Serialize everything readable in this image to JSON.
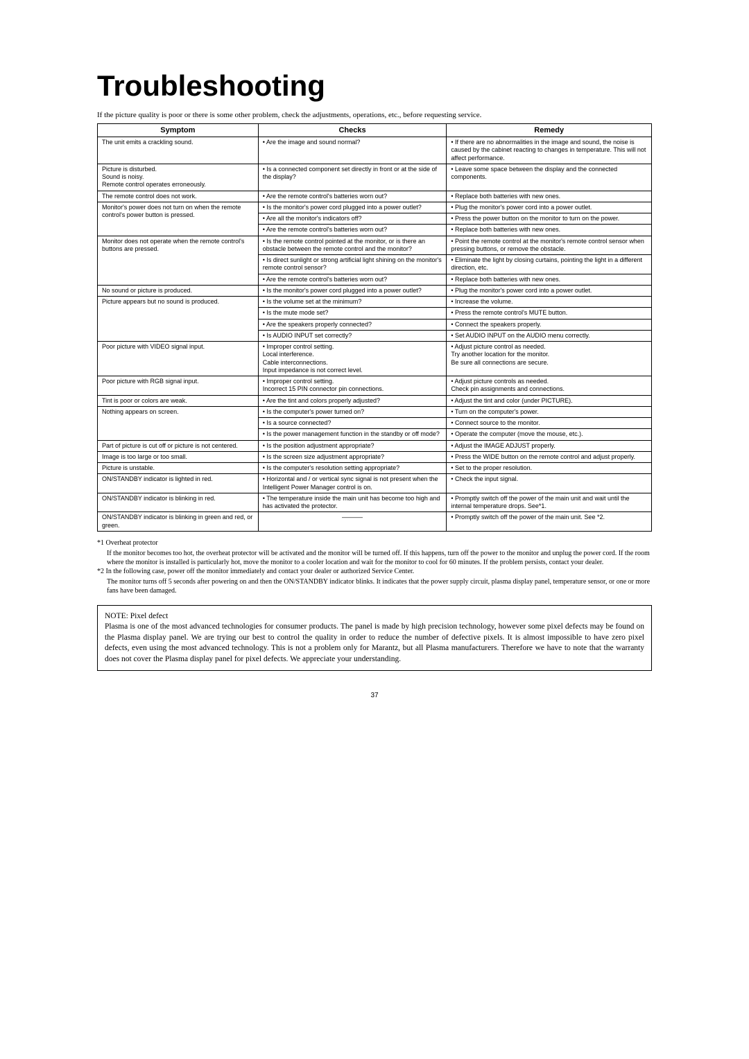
{
  "title": "Troubleshooting",
  "intro": "If the picture quality is poor or there is some other problem, check the adjustments, operations, etc., before requesting service.",
  "headers": {
    "symptom": "Symptom",
    "checks": "Checks",
    "remedy": "Remedy"
  },
  "rows": [
    {
      "s": "The unit emits a crackling sound.",
      "sr": 1,
      "c": "• Are the image and sound normal?",
      "r": "• If there are no abnormalities in the image and sound, the noise is caused by the cabinet reacting to changes in temperature. This will not affect performance."
    },
    {
      "s": "Picture is disturbed.\nSound is noisy.\nRemote control operates erroneously.",
      "sr": 1,
      "c": "• Is a connected component set directly in front or at the side of the display?",
      "r": "• Leave some space between the display and the connected components."
    },
    {
      "s": "The remote control does not work.",
      "sr": 1,
      "c": "• Are the remote control's batteries worn out?",
      "r": "• Replace both batteries with new ones."
    },
    {
      "s": "Monitor's power does not turn on when the remote control's power button is pressed.",
      "sr": 3,
      "c": "• Is the monitor's power cord plugged into a power outlet?",
      "r": "• Plug the monitor's power cord into a power outlet."
    },
    {
      "c": "• Are all the monitor's indicators off?",
      "r": "• Press the power button on the monitor to turn on the power."
    },
    {
      "c": "• Are the remote control's batteries worn out?",
      "r": "• Replace both batteries with new ones."
    },
    {
      "s": "Monitor does not operate when the remote control's buttons are pressed.",
      "sr": 3,
      "c": "• Is the remote control pointed at the monitor, or is there an obstacle between the remote control and the monitor?",
      "r": "• Point the remote control at the monitor's remote control sensor when pressing buttons, or remove the obstacle."
    },
    {
      "c": "• Is direct sunlight or strong artificial light shining on the monitor's remote control sensor?",
      "r": "• Eliminate the light by closing curtains, pointing the light in a different direction, etc."
    },
    {
      "c": "• Are the remote control's batteries worn out?",
      "r": "• Replace both batteries with new ones."
    },
    {
      "s": "No sound or picture is produced.",
      "sr": 1,
      "c": "• Is the monitor's power cord plugged into a power outlet?",
      "r": "• Plug the monitor's power cord into a power outlet."
    },
    {
      "s": "Picture appears but no sound is produced.",
      "sr": 4,
      "c": "• Is the volume set at the minimum?",
      "r": "• Increase the volume."
    },
    {
      "c": "• Is the mute mode set?",
      "r": "• Press the remote control's MUTE button."
    },
    {
      "c": "• Are the speakers properly connected?",
      "r": "• Connect the speakers properly."
    },
    {
      "c": "• Is AUDIO INPUT set correctly?",
      "r": "• Set AUDIO INPUT on the AUDIO menu correctly."
    },
    {
      "s": "Poor picture with VIDEO signal input.",
      "sr": 1,
      "c": "• Improper control setting.\nLocal interference.\nCable interconnections.\nInput impedance is not correct level.",
      "r": "• Adjust picture control as needed.\nTry another location for the monitor.\nBe sure all connections are secure."
    },
    {
      "s": "Poor picture with RGB signal input.",
      "sr": 1,
      "c": "• Improper control setting.\nIncorrect 15 PIN connector pin connections.",
      "r": "• Adjust picture controls as needed.\nCheck pin assignments and connections."
    },
    {
      "s": "Tint is poor or colors are weak.",
      "sr": 1,
      "c": "• Are the tint and colors properly adjusted?",
      "r": "• Adjust the tint and color (under PICTURE)."
    },
    {
      "s": "Nothing appears on screen.",
      "sr": 3,
      "c": "• Is the computer's power turned on?",
      "r": "• Turn on the computer's power."
    },
    {
      "c": "• Is a source connected?",
      "r": "• Connect source to the monitor."
    },
    {
      "c": "• Is the power management function in the standby or off mode?",
      "r": "• Operate the computer (move the mouse, etc.)."
    },
    {
      "s": "Part of picture is cut off or picture is not centered.",
      "sr": 1,
      "c": "• Is the position adjustment appropriate?",
      "r": "• Adjust the IMAGE ADJUST properly."
    },
    {
      "s": "Image is too large or too small.",
      "sr": 1,
      "c": "• Is the screen size adjustment appropriate?",
      "r": "• Press the WIDE button on the remote control and adjust properly."
    },
    {
      "s": "Picture is unstable.",
      "sr": 1,
      "c": "• Is the computer's resolution setting appropriate?",
      "r": "• Set to the proper resolution."
    },
    {
      "s": "ON/STANDBY indicator is lighted in red.",
      "sr": 1,
      "c": "• Horizontal and / or vertical sync signal is not present when the Intelligent Power Manager control is on.",
      "r": "• Check the input signal."
    },
    {
      "s": "ON/STANDBY indicator is blinking in red.",
      "sr": 1,
      "c": "• The temperature inside the main unit has become too high and has activated the protector.",
      "r": "• Promptly switch off the power of the main unit and wait until the internal temperature drops. See*1."
    },
    {
      "s": "ON/STANDBY indicator is blinking in green and red, or green.",
      "sr": 1,
      "c": "––––––",
      "cdash": true,
      "r": "• Promptly switch off the power of the main unit. See *2."
    }
  ],
  "footnotes": {
    "f1label": "*1 Overheat protector",
    "f1text": "If the monitor becomes too hot, the overheat protector will be activated and the monitor will be turned off. If this happens, turn off the power to the monitor and unplug the power cord. If the room where the monitor is installed is particularly hot, move the monitor to a cooler location and wait for the monitor to cool for 60 minutes. If the problem persists, contact your dealer.",
    "f2label": "*2 In the following case, power off the monitor immediately and contact your dealer or authorized Service Center.",
    "f2text": "The monitor turns off 5 seconds after powering on and then the ON/STANDBY indicator blinks. It indicates that the power supply circuit, plasma display panel, temperature sensor, or one or more fans have been damaged."
  },
  "note": {
    "head": "NOTE: Pixel defect",
    "body": "Plasma is one of the most advanced technologies for consumer products. The panel is made by high precision technology, however some pixel defects may be found on the Plasma display panel. We are trying our best to control the quality in order to reduce the number of defective pixels. It is almost impossible to have zero pixel defects, even using the most advanced technology. This is not a problem only for Marantz, but all Plasma manufacturers. Therefore we have to note that the warranty does not cover the Plasma display panel for pixel defects. We appreciate your understanding."
  },
  "pagenum": "37"
}
